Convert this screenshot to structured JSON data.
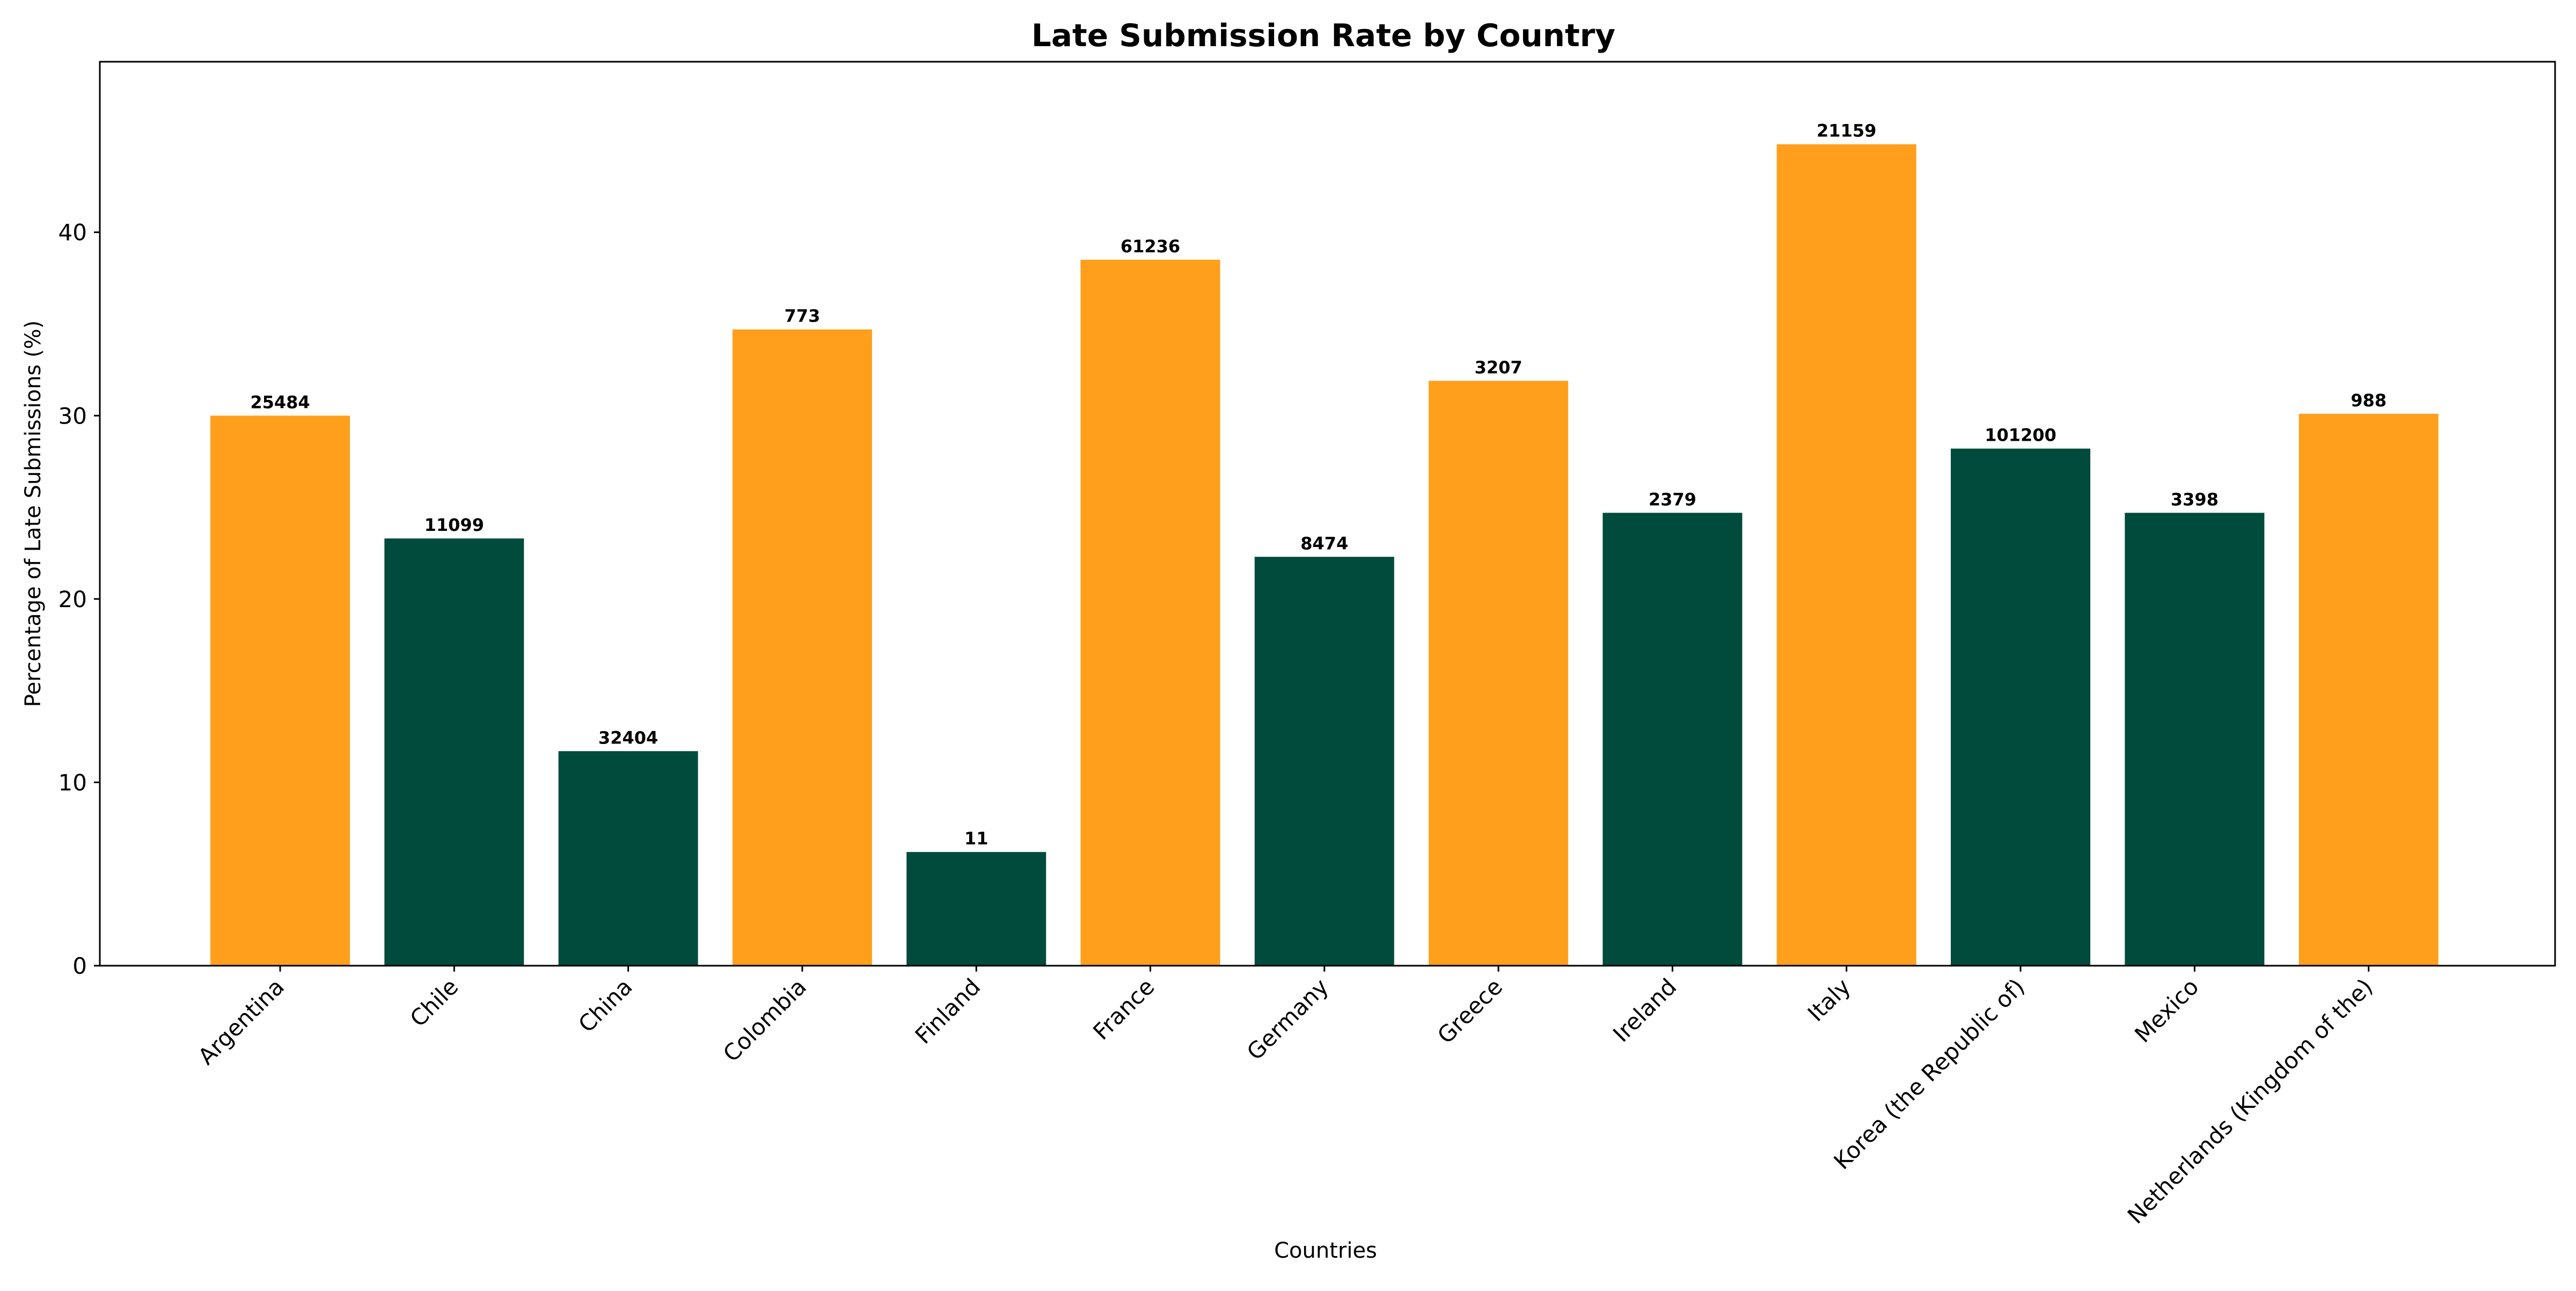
{
  "chart_data": {
    "type": "bar",
    "title": "Late Submission Rate by Country",
    "xlabel": "Countries",
    "ylabel": "Percentage of Late Submissions (%)",
    "ylim": [
      0,
      49.3
    ],
    "yticks": [
      0,
      10,
      20,
      30,
      40
    ],
    "grid": false,
    "legend": "none",
    "categories": [
      "Argentina",
      "Chile",
      "China",
      "Colombia",
      "Finland",
      "France",
      "Germany",
      "Greece",
      "Ireland",
      "Italy",
      "Korea (the Republic of)",
      "Mexico",
      "Netherlands (Kingdom of the)"
    ],
    "values": [
      30.0,
      23.3,
      11.7,
      34.7,
      6.2,
      38.5,
      22.3,
      31.9,
      24.7,
      44.8,
      28.2,
      24.7,
      30.1
    ],
    "data_labels": [
      "25484",
      "11099",
      "32404",
      "773",
      "11",
      "61236",
      "8474",
      "3207",
      "2379",
      "21159",
      "101200",
      "3398",
      "988"
    ],
    "colors": [
      "#ff9f1c",
      "#004b3c",
      "#004b3c",
      "#ff9f1c",
      "#004b3c",
      "#ff9f1c",
      "#004b3c",
      "#ff9f1c",
      "#004b3c",
      "#ff9f1c",
      "#004b3c",
      "#004b3c",
      "#ff9f1c"
    ]
  }
}
